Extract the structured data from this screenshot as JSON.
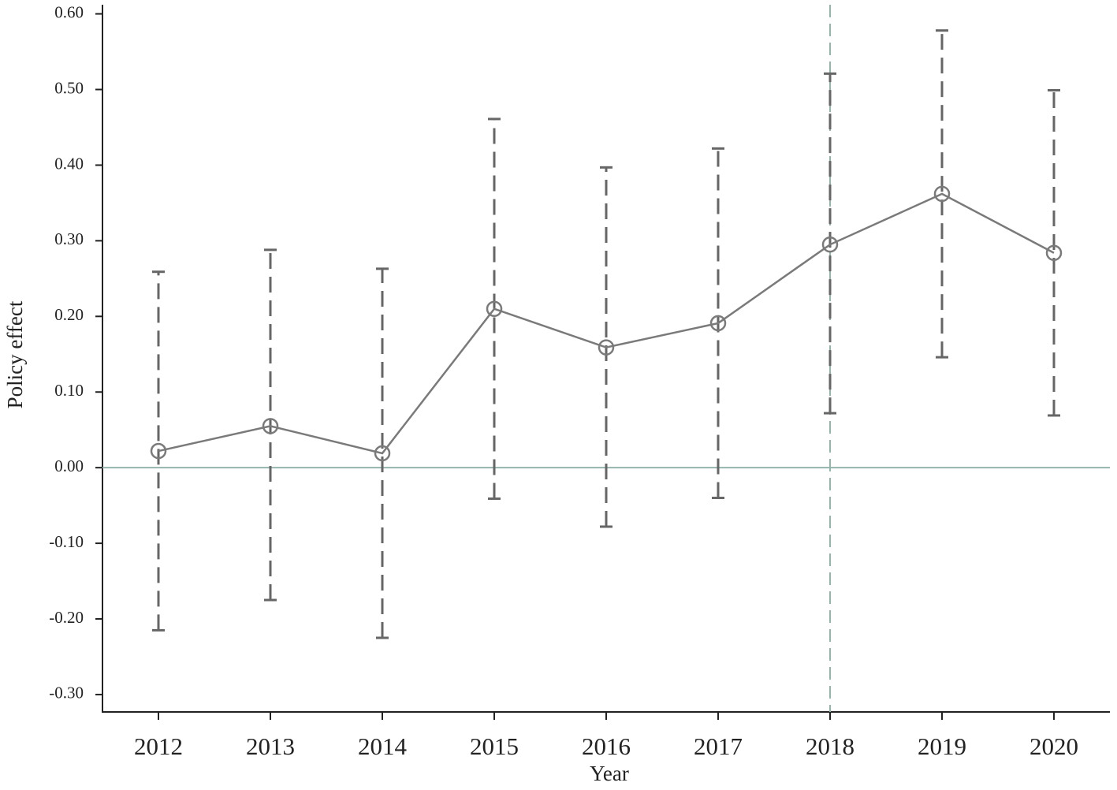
{
  "chart_data": {
    "type": "line",
    "x_label": "Year",
    "y_label": "Policy effect",
    "categories": [
      "2012",
      "2013",
      "2014",
      "2015",
      "2016",
      "2017",
      "2018",
      "2019",
      "2020"
    ],
    "series": [
      {
        "color": "#7a7a7a",
        "values": [
          0.022,
          0.055,
          0.019,
          0.21,
          0.159,
          0.191,
          0.295,
          0.362,
          0.284
        ],
        "lower": [
          -0.215,
          -0.175,
          -0.225,
          -0.041,
          -0.078,
          -0.04,
          0.072,
          0.146,
          0.069
        ],
        "upper": [
          0.259,
          0.288,
          0.263,
          0.461,
          0.397,
          0.422,
          0.521,
          0.578,
          0.499
        ],
        "error_color": "#666666"
      }
    ],
    "ylim": [
      -0.323,
      0.61
    ],
    "yticks": [
      {
        "value": -0.3,
        "label": "-0.30"
      },
      {
        "value": -0.2,
        "label": "-0.20"
      },
      {
        "value": -0.1,
        "label": "-0.10"
      },
      {
        "value": 0,
        "label": "0.00"
      },
      {
        "value": 0.1,
        "label": "0.10"
      },
      {
        "value": 0.2,
        "label": "0.20"
      },
      {
        "value": 0.3,
        "label": "0.30"
      },
      {
        "value": 0.4,
        "label": "0.40"
      },
      {
        "value": 0.5,
        "label": "0.50"
      },
      {
        "value": 0.6,
        "label": "0.60"
      }
    ],
    "reference_y": 0,
    "reference_x": "2018",
    "reference_color": "#93b5ac"
  }
}
